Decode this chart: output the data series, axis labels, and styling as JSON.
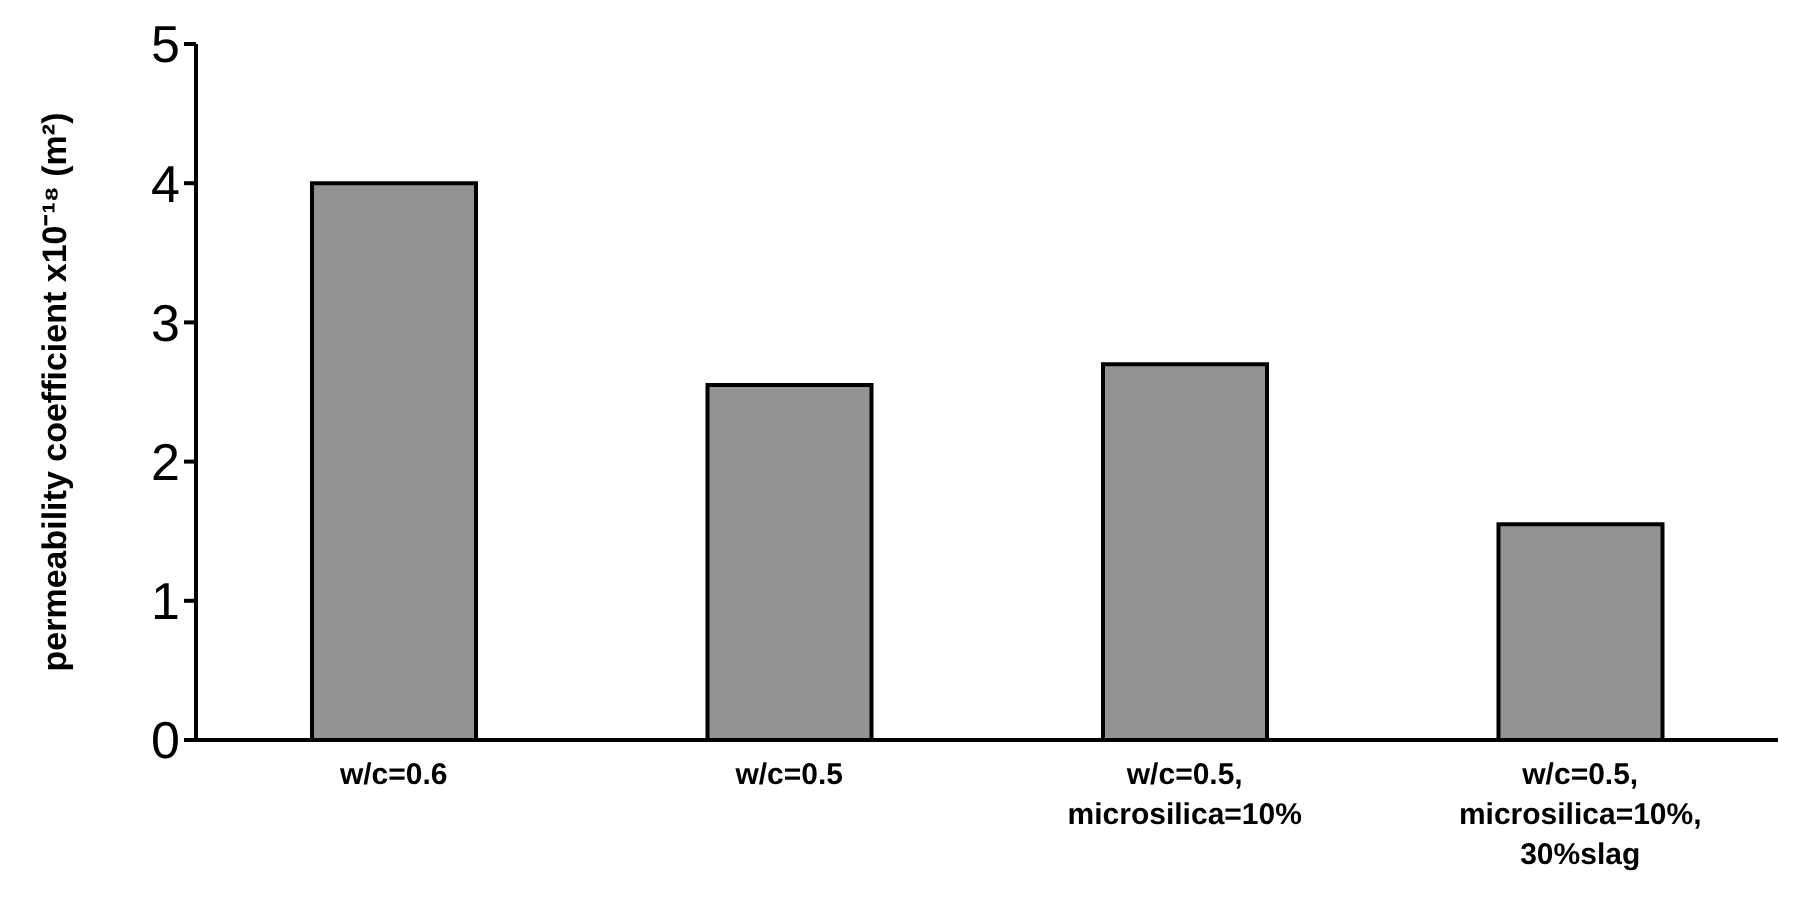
{
  "chart_data": {
    "type": "bar",
    "ylabel": "permeability coefficient x10⁻¹⁸ (m²)",
    "categories": [
      "w/c=0.6",
      "w/c=0.5",
      "w/c=0.5, microsilica=10%",
      "w/c=0.5, microsilica=10%, 30%slag"
    ],
    "values": [
      4.0,
      2.55,
      2.7,
      1.55
    ],
    "color": "#939393",
    "ylim": [
      0,
      5
    ],
    "yticks": [
      0,
      1,
      2,
      3,
      4,
      5
    ],
    "grid": false,
    "legend": false
  }
}
